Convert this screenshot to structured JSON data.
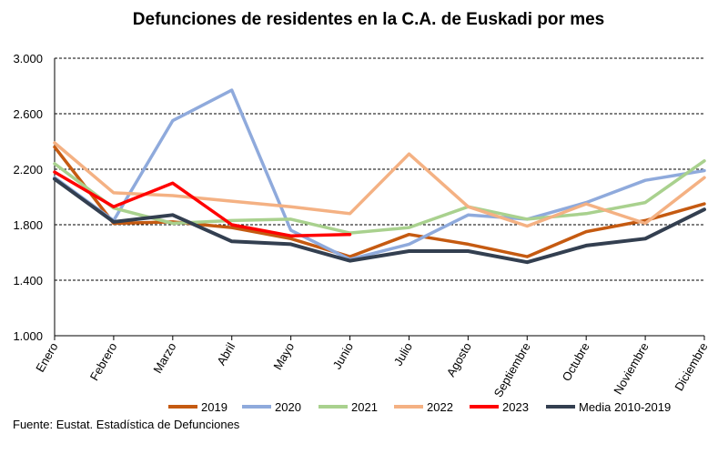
{
  "chart_data": {
    "type": "line",
    "title": "Defunciones de residentes en la C.A. de Euskadi por mes",
    "source": "Fuente: Eustat. Estadística de Defunciones",
    "categories": [
      "Enero",
      "Febrero",
      "Marzo",
      "Abril",
      "Mayo",
      "Junio",
      "Julio",
      "Agosto",
      "Septiembre",
      "Octubre",
      "Noviembre",
      "Diciembre"
    ],
    "ylim": [
      1000,
      3000
    ],
    "yticks": [
      1000,
      1400,
      1800,
      2200,
      2600,
      3000
    ],
    "ytick_labels": [
      "1.000",
      "1.400",
      "1.800",
      "2.200",
      "2.600",
      "3.000"
    ],
    "grid": "horizontal-dashed",
    "legend_position": "bottom",
    "series": [
      {
        "name": "2019",
        "color": "#c55a11",
        "values": [
          2360,
          1810,
          1820,
          1780,
          1700,
          1570,
          1730,
          1660,
          1570,
          1750,
          1830,
          1950
        ]
      },
      {
        "name": "2020",
        "color": "#8faadc",
        "values": [
          2140,
          1830,
          2550,
          2770,
          1760,
          1550,
          1660,
          1870,
          1840,
          1960,
          2120,
          2190
        ]
      },
      {
        "name": "2021",
        "color": "#a9d18e",
        "values": [
          2240,
          1920,
          1810,
          1830,
          1840,
          1740,
          1780,
          1930,
          1840,
          1880,
          1960,
          2260
        ]
      },
      {
        "name": "2022",
        "color": "#f4b183",
        "values": [
          2390,
          2030,
          2010,
          1970,
          1930,
          1880,
          2310,
          1930,
          1790,
          1950,
          1810,
          2140
        ]
      },
      {
        "name": "2023",
        "color": "#ff0000",
        "values": [
          2180,
          1930,
          2100,
          1800,
          1720,
          1730,
          null,
          null,
          null,
          null,
          null,
          null
        ]
      },
      {
        "name": "Media 2010-2019",
        "color": "#333f50",
        "values": [
          2130,
          1820,
          1870,
          1680,
          1660,
          1540,
          1610,
          1610,
          1530,
          1650,
          1700,
          1910
        ]
      }
    ]
  }
}
